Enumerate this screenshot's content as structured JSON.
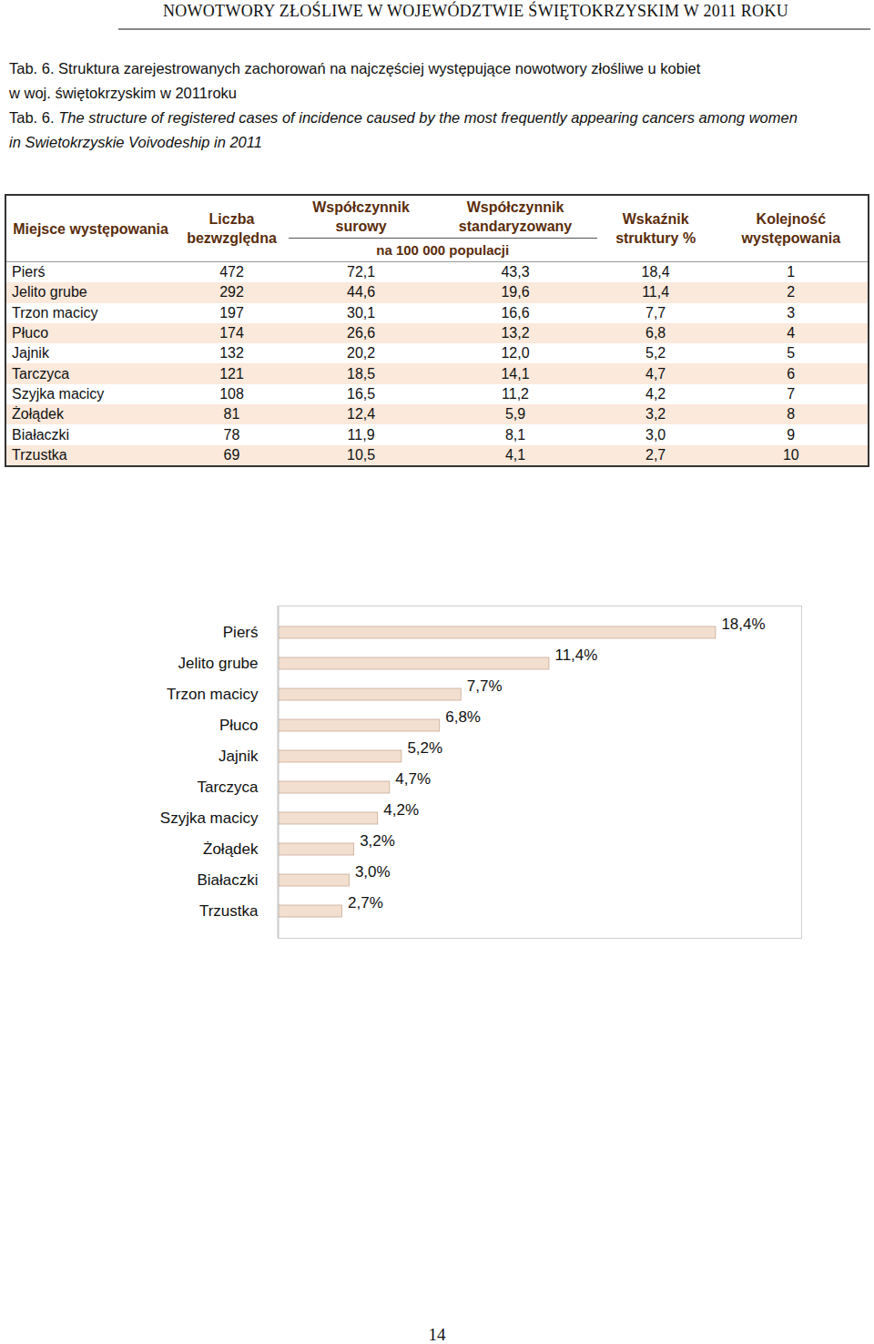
{
  "header": "NOWOTWORY ZŁOŚLIWE W WOJEWÓDZTWIE ŚWIĘTOKRZYSKIM W 2011 ROKU",
  "caption": {
    "pl": [
      "Tab. 6. Struktura zarejestrowanych zachorowań na najczęściej występujące nowotwory złośliwe u kobiet",
      "w woj. świętokrzyskim w 2011roku"
    ],
    "en_label": "Tab. 6.",
    "en": [
      "The structure of registered cases of incidence caused by the most frequently appearing cancers among women",
      "in Swietokrzyskie Voivodeship in 2011"
    ]
  },
  "table": {
    "columns": [
      "Miejsce występowania",
      "Liczba bezwzględna",
      "Współczynnik surowy",
      "Współczynnik standaryzowany",
      "Wskaźnik struktury %",
      "Kolejność występowania"
    ],
    "group_label": "na 100 000 populacji",
    "rows": [
      [
        "Pierś",
        "472",
        "72,1",
        "43,3",
        "18,4",
        "1"
      ],
      [
        "Jelito grube",
        "292",
        "44,6",
        "19,6",
        "11,4",
        "2"
      ],
      [
        "Trzon macicy",
        "197",
        "30,1",
        "16,6",
        "7,7",
        "3"
      ],
      [
        "Płuco",
        "174",
        "26,6",
        "13,2",
        "6,8",
        "4"
      ],
      [
        "Jajnik",
        "132",
        "20,2",
        "12,0",
        "5,2",
        "5"
      ],
      [
        "Tarczyca",
        "121",
        "18,5",
        "14,1",
        "4,7",
        "6"
      ],
      [
        "Szyjka macicy",
        "108",
        "16,5",
        "11,2",
        "4,2",
        "7"
      ],
      [
        "Żołądek",
        "81",
        "12,4",
        "5,9",
        "3,2",
        "8"
      ],
      [
        "Białaczki",
        "78",
        "11,9",
        "8,1",
        "3,0",
        "9"
      ],
      [
        "Trzustka",
        "69",
        "10,5",
        "4,1",
        "2,7",
        "10"
      ]
    ]
  },
  "chart_data": {
    "type": "bar",
    "orientation": "horizontal",
    "categories": [
      "Pierś",
      "Jelito grube",
      "Trzon macicy",
      "Płuco",
      "Jajnik",
      "Tarczyca",
      "Szyjka macicy",
      "Żołądek",
      "Białaczki",
      "Trzustka"
    ],
    "values": [
      18.4,
      11.4,
      7.7,
      6.8,
      5.2,
      4.7,
      4.2,
      3.2,
      3.0,
      2.7
    ],
    "value_labels": [
      "18,4%",
      "11,4%",
      "7,7%",
      "6,8%",
      "5,2%",
      "4,7%",
      "4,2%",
      "3,2%",
      "3,0%",
      "2,7%"
    ],
    "color": "#f3dfcf",
    "xlim": [
      0,
      22
    ],
    "grid": false,
    "data_labels": true,
    "tick_labels": "y"
  },
  "page_number": "14"
}
